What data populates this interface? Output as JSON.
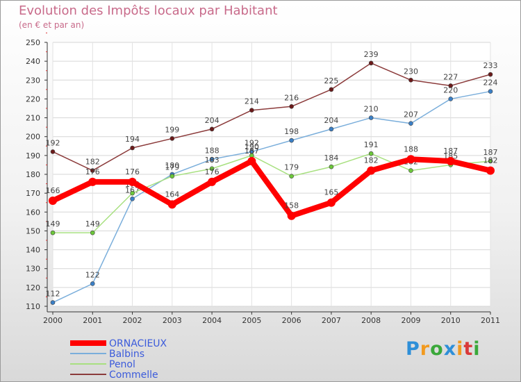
{
  "chart_data": {
    "type": "line",
    "title": "Evolution des Impôts locaux par Habitant",
    "subtitle": "(en € et par an)",
    "categories": [
      "2000",
      "2001",
      "2002",
      "2003",
      "2004",
      "2005",
      "2006",
      "2007",
      "2008",
      "2009",
      "2010",
      "2011"
    ],
    "ylim": [
      110,
      250
    ],
    "yticks": [
      110,
      120,
      130,
      140,
      150,
      160,
      170,
      180,
      190,
      200,
      210,
      220,
      230,
      240,
      250
    ],
    "grid": true,
    "legend_position": "bottom-left",
    "series": [
      {
        "name": "Commelle",
        "color": "#8b3a3a",
        "marker": "#6b1a1a",
        "values": [
          192,
          182,
          194,
          199,
          204,
          214,
          216,
          225,
          239,
          230,
          227,
          233
        ]
      },
      {
        "name": "Balbins",
        "color": "#7aaedb",
        "marker": "#3a7fc6",
        "values": [
          112,
          122,
          167,
          180,
          188,
          192,
          198,
          204,
          210,
          207,
          220,
          224
        ]
      },
      {
        "name": "Penol",
        "color": "#a8e080",
        "marker": "#6cc83a",
        "values": [
          149,
          149,
          170,
          179,
          183,
          190,
          179,
          184,
          191,
          182,
          185,
          187
        ]
      },
      {
        "name": "ORNACIEUX",
        "color": "#ff0000",
        "marker": "#ff0000",
        "values": [
          166,
          176,
          176,
          164,
          176,
          187,
          158,
          165,
          182,
          188,
          187,
          182
        ]
      }
    ],
    "legend": [
      "ORNACIEUX",
      "Balbins",
      "Penol",
      "Commelle"
    ]
  },
  "logo": {
    "letters": [
      "P",
      "r",
      "o",
      "x",
      "i",
      "t",
      "i"
    ],
    "colors": [
      "#2e8fd8",
      "#f29a1f",
      "#3aa83a",
      "#2e8fd8",
      "#f29a1f",
      "#d93a3a",
      "#3aa83a"
    ]
  }
}
